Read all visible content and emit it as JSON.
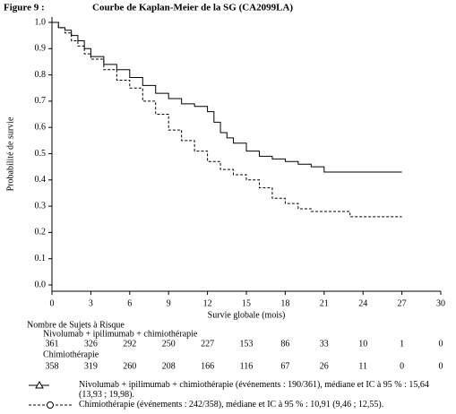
{
  "chart_data": {
    "type": "step",
    "figure_label": "Figure 9 :",
    "title": "Courbe de Kaplan-Meier de la SG (CA2099LA)",
    "xlabel": "Survie globale (mois)",
    "ylabel": "Probabilité de survie",
    "xlim": [
      0,
      30
    ],
    "xticks": [
      0,
      3,
      6,
      9,
      12,
      15,
      18,
      21,
      24,
      27,
      30
    ],
    "ylim": [
      0,
      1
    ],
    "yticks": [
      {
        "value": 0,
        "label": "0.0"
      },
      0.1,
      0.2,
      0.3,
      0.4,
      0.5,
      0.6,
      0.7,
      0.8,
      0.9,
      {
        "value": 1,
        "label": "1.0"
      }
    ],
    "series": [
      {
        "name": "Nivolumab + ipilimumab + chimiothérapie (événements : 190/361), médiane et IC à 95 % : 15,64 (13,93 ; 19,98).",
        "color": "#000000",
        "line_style": "solid",
        "x": [
          0,
          0.5,
          1,
          1.5,
          2,
          2.5,
          3,
          4,
          5,
          6,
          7,
          8,
          9,
          10,
          11,
          12,
          12.5,
          13,
          13.5,
          14,
          15,
          16,
          17,
          18,
          19,
          20,
          21,
          22,
          24,
          26,
          27
        ],
        "values": [
          1.0,
          0.98,
          0.97,
          0.95,
          0.93,
          0.9,
          0.87,
          0.84,
          0.82,
          0.79,
          0.76,
          0.73,
          0.71,
          0.69,
          0.68,
          0.66,
          0.62,
          0.58,
          0.56,
          0.54,
          0.51,
          0.49,
          0.48,
          0.47,
          0.46,
          0.45,
          0.43,
          0.43,
          0.43,
          0.43,
          0.43
        ]
      },
      {
        "name": "Chimiothérapie (événements : 242/358), médiane et IC à 95 % : 10,91 (9,46 ; 12,55).",
        "color": "#000000",
        "line_style": "dashed",
        "x": [
          0,
          0.5,
          1,
          1.5,
          2,
          2.5,
          3,
          4,
          5,
          6,
          7,
          8,
          9,
          10,
          11,
          12,
          13,
          14,
          15,
          16,
          17,
          18,
          19,
          20,
          21,
          22,
          23,
          24,
          26,
          27
        ],
        "values": [
          1.0,
          0.98,
          0.96,
          0.93,
          0.91,
          0.88,
          0.86,
          0.82,
          0.78,
          0.75,
          0.7,
          0.65,
          0.59,
          0.55,
          0.51,
          0.47,
          0.44,
          0.42,
          0.4,
          0.37,
          0.33,
          0.31,
          0.29,
          0.28,
          0.28,
          0.28,
          0.26,
          0.26,
          0.26,
          0.26
        ]
      }
    ],
    "risk_table": {
      "title": "Nombre de Sujets à Risque",
      "groups": [
        {
          "name": "Nivolumab + ipilimumab + chimiothérapie",
          "counts": [
            361,
            326,
            292,
            250,
            227,
            153,
            86,
            33,
            10,
            1,
            0
          ]
        },
        {
          "name": "Chimiothérapie",
          "counts": [
            358,
            319,
            260,
            208,
            166,
            116,
            67,
            26,
            11,
            0,
            0
          ]
        }
      ]
    }
  }
}
